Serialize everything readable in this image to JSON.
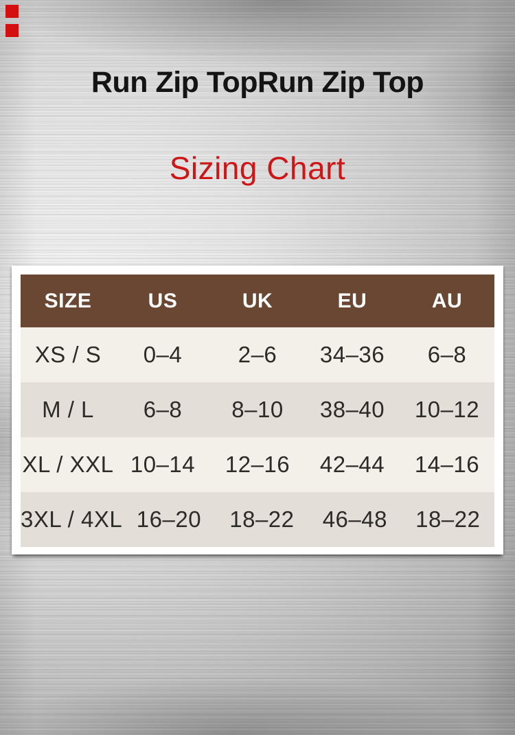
{
  "page": {
    "title": "Run Zip TopRun Zip Top",
    "subtitle": "Sizing Chart"
  },
  "colors": {
    "title_text": "#141414",
    "subtitle_red": "#ce1616",
    "table_header_bg": "#6a4733",
    "table_header_text": "#ffffff",
    "row_light": "#f3f0ea",
    "row_dark": "#e3dfd8",
    "cell_text": "#2d2b28",
    "card_bg": "#ffffff",
    "corner_mark_red": "#d30f0f"
  },
  "decor": {
    "background_style": "brushed-metal",
    "corner_marks_count": 2
  },
  "chart_data": {
    "type": "table",
    "title": "Sizing Chart",
    "columns": [
      "SIZE",
      "US",
      "UK",
      "EU",
      "AU"
    ],
    "rows": [
      [
        "XS / S",
        "0–4",
        "2–6",
        "34–36",
        "6–8"
      ],
      [
        "M / L",
        "6–8",
        "8–10",
        "38–40",
        "10–12"
      ],
      [
        "XL / XXL",
        "10–14",
        "12–16",
        "42–44",
        "14–16"
      ],
      [
        "3XL / 4XL",
        "16–20",
        "18–22",
        "46–48",
        "18–22"
      ]
    ]
  }
}
